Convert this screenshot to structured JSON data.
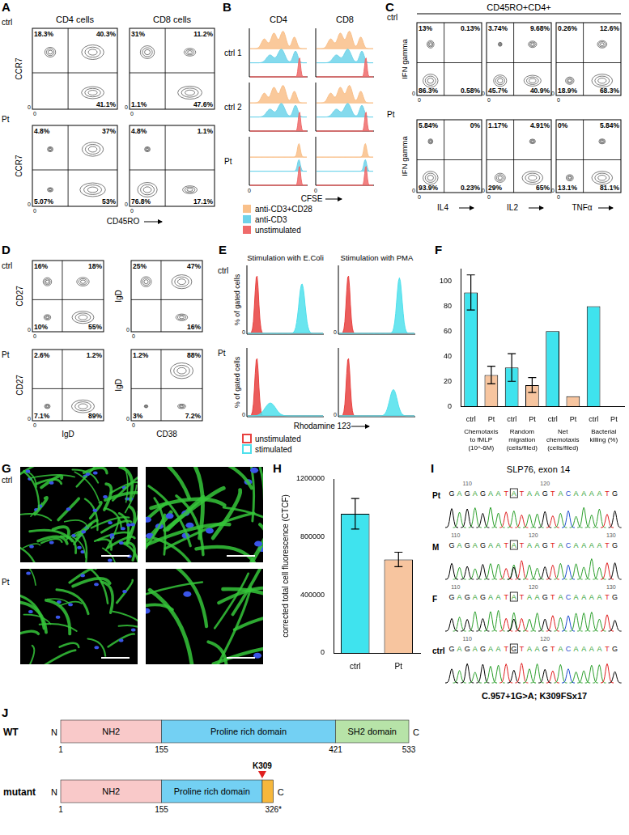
{
  "chart_data": [
    {
      "panel": "F",
      "type": "bar",
      "categories": [
        "ctrl",
        "Pt",
        "ctrl",
        "Pt",
        "ctrl",
        "Pt",
        "ctrl",
        "Pt"
      ],
      "groups": [
        [
          "Chemotaxis",
          "to fMLP",
          "(10^-6M)"
        ],
        [
          "Random",
          "migration",
          "(cells/filed)"
        ],
        [
          "Net",
          "chemotaxis",
          "(cells/filed)"
        ],
        [
          "Bacterial",
          "killing (%)"
        ]
      ],
      "values": [
        91,
        25,
        31,
        17,
        60,
        8,
        80,
        0
      ],
      "errors": [
        14,
        7,
        11,
        6,
        null,
        null,
        null,
        null
      ],
      "colors": [
        "#3fe3ee",
        "#f7c59f",
        "#3fe3ee",
        "#f7c59f",
        "#3fe3ee",
        "#f7c59f",
        "#3fe3ee",
        "#f7c59f"
      ],
      "ylim": [
        0,
        110
      ],
      "yticks": [
        0,
        20,
        40,
        60,
        80,
        100
      ],
      "grid": false
    },
    {
      "panel": "H",
      "type": "bar",
      "categories": [
        "ctrl",
        "Pt"
      ],
      "values": [
        960000,
        645000
      ],
      "errors": [
        105000,
        50000
      ],
      "colors": [
        "#3fe3ee",
        "#f7c59f"
      ],
      "y_label": "corrected total cell fluorescence (CTCF)",
      "ylim": [
        0,
        1200000
      ],
      "yticks": [
        0,
        400000,
        800000,
        1200000
      ],
      "grid": false
    }
  ],
  "panels": {
    "A": {
      "letter": "A",
      "columns": [
        "CD4 cells",
        "CD8 cells"
      ],
      "rows": [
        "ctrl",
        "Pt"
      ],
      "x_label": "CD45RO",
      "y_label": "CCR7",
      "axis_tick": "0",
      "plots": [
        [
          {
            "tl": "18.3%",
            "tr": "40.3%",
            "br": "41.1%"
          },
          {
            "tl": "31%",
            "tr": "11.2%",
            "bl": "1.1%",
            "br": "47.6%"
          }
        ],
        [
          {
            "tl": "4.8%",
            "tr": "37%",
            "bl": "5.07%",
            "br": "53%"
          },
          {
            "tl": "4.8%",
            "tr": "1.1%",
            "bl": "76.8%",
            "br": "17.1%"
          }
        ]
      ]
    },
    "B": {
      "letter": "B",
      "columns": [
        "CD4",
        "CD8"
      ],
      "rows": [
        "ctrl 1",
        "ctrl 2",
        "Pt"
      ],
      "x_label": "CFSE",
      "axis_tick": "0",
      "legend": [
        {
          "label": "anti-CD3+CD28",
          "color": "#f9c08a"
        },
        {
          "label": "anti-CD3",
          "color": "#6fd3ea"
        },
        {
          "label": "unstimulated",
          "color": "#ef6b6b"
        }
      ]
    },
    "C": {
      "letter": "C",
      "title": "CD45RO+CD4+",
      "rows": [
        "ctrl",
        "Pt"
      ],
      "x_labels": [
        "IL4",
        "IL2",
        "TNFα"
      ],
      "y_label": "IFN gamma",
      "axis_tick": "0",
      "plots": [
        [
          {
            "tl": "13%",
            "tr": "0.13%",
            "bl": "86.3%",
            "br": "0.58%"
          },
          {
            "tl": "3.74%",
            "tr": "9.68%",
            "bl": "45.7%",
            "br": "40.9%"
          },
          {
            "tl": "0.26%",
            "tr": "12.6%",
            "bl": "18.9%",
            "br": "68.3%"
          }
        ],
        [
          {
            "tl": "5.84%",
            "tr": "0%",
            "bl": "93.9%",
            "br": "0.23%"
          },
          {
            "tl": "1.17%",
            "tr": "4.91%",
            "bl": "29%",
            "br": "65%"
          },
          {
            "tl": "0%",
            "tr": "5.84%",
            "bl": "13.1%",
            "br": "81.1%"
          }
        ]
      ]
    },
    "D": {
      "letter": "D",
      "rows": [
        "ctrl",
        "Pt"
      ],
      "columns": [
        {
          "x_label": "IgD",
          "y_label": "CD27"
        },
        {
          "x_label": "CD38",
          "y_label": "IgD"
        }
      ],
      "axis_tick": "0",
      "plots": [
        [
          {
            "tl": "16%",
            "tr": "18%",
            "bl": "10%",
            "br": "55%"
          },
          {
            "tl": "25%",
            "tr": "47%",
            "br": "16%"
          }
        ],
        [
          {
            "tl": "2.6%",
            "tr": "1.2%",
            "bl": "7.1%",
            "br": "89%"
          },
          {
            "tl": "1.2%",
            "tr": "88%",
            "bl": "3%",
            "br": "7.2%"
          }
        ]
      ]
    },
    "E": {
      "letter": "E",
      "columns": [
        "Stimulation with E.Coli",
        "Stimulation with PMA"
      ],
      "rows": [
        "ctrl",
        "Pt"
      ],
      "x_label": "Rhodamine 123",
      "y_label": "% of gated cells",
      "axis_tick": "0",
      "legend": [
        {
          "label": "unstimulated",
          "color": "#e8413f"
        },
        {
          "label": "stimulated",
          "color": "#4fe0ec"
        }
      ]
    },
    "G": {
      "letter": "G",
      "rows": [
        "ctrl",
        "Pt"
      ]
    },
    "I": {
      "letter": "I",
      "title": "SLP76, exon 14",
      "rows": [
        {
          "label": "Pt",
          "sequence": "GAGAGAATATAAGTACAAAATG",
          "boxed": 8,
          "numbers": [
            110,
            120
          ]
        },
        {
          "label": "M",
          "sequence": "GAGAGAATATAAGTACAAAATG",
          "boxed": 8,
          "numbers": [
            110,
            120,
            130
          ]
        },
        {
          "label": "F",
          "sequence": "GAGAGAATATAAGTACAAAATG",
          "boxed": 8,
          "numbers": [
            110,
            120,
            130
          ]
        },
        {
          "label": "ctrl",
          "sequence": "GAGAGAATGTAAGTACAAAATG",
          "boxed": 8,
          "numbers": [
            110,
            120
          ]
        }
      ],
      "caption": "C.957+1G>A; K309FSx17"
    },
    "J": {
      "letter": "J",
      "n_label": "N",
      "c_label": "C",
      "proteins": [
        {
          "label": "WT",
          "domains": [
            {
              "label": "NH2",
              "start": 1,
              "end": 155,
              "color": "#f9c9c9"
            },
            {
              "label": "Proline rich domain",
              "start": 155,
              "end": 421,
              "color": "#73d0f3"
            },
            {
              "label": "SH2 domain",
              "start": 421,
              "end": 533,
              "color": "#b7e3a8"
            }
          ],
          "positions": [
            1,
            155,
            421,
            533
          ]
        },
        {
          "label": "mutant",
          "domains": [
            {
              "label": "NH2",
              "start": 1,
              "end": 155,
              "color": "#f9c9c9"
            },
            {
              "label": "Proline rich domain",
              "start": 155,
              "end": 309,
              "color": "#73d0f3"
            },
            {
              "start": 309,
              "end": 326,
              "color": "#f6b73c"
            }
          ],
          "positions": [
            1,
            155,
            {
              "value": 326,
              "label": "326*"
            }
          ],
          "marker": {
            "value": 309,
            "label": "K309",
            "color": "#e02020"
          }
        }
      ]
    }
  }
}
